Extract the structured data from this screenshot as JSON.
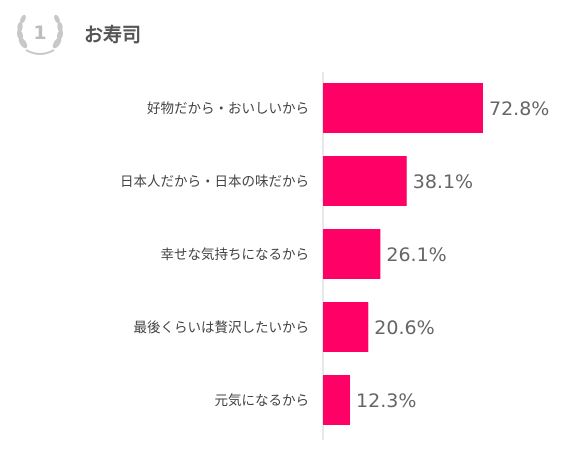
{
  "header": {
    "rank": "1",
    "title": "お寿司",
    "badge_icon": "laurel-wreath-icon"
  },
  "chart_data": {
    "type": "bar",
    "orientation": "horizontal",
    "categories": [
      "好物だから・おいしいから",
      "日本人だから・日本の味だから",
      "幸せな気持ちになるから",
      "最後くらいは贅沢したいから",
      "元気になるから"
    ],
    "values": [
      72.8,
      38.1,
      26.1,
      20.6,
      12.3
    ],
    "value_labels": [
      "72.8%",
      "38.1%",
      "26.1%",
      "20.6%",
      "12.3%"
    ],
    "xlim": [
      0,
      100
    ],
    "bar_color": "#ff0066",
    "grid": false
  }
}
